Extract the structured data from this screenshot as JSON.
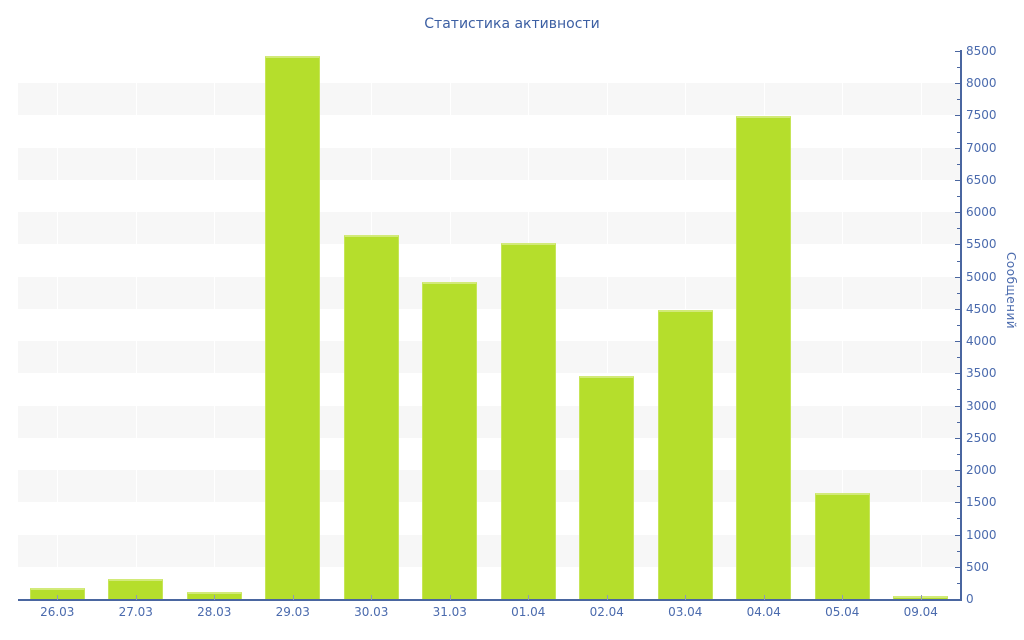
{
  "chart_data": {
    "type": "bar",
    "title": "Статистика активности",
    "ylabel": "Сообщений",
    "categories": [
      "26.03",
      "27.03",
      "28.03",
      "29.03",
      "30.03",
      "31.03",
      "01.04",
      "02.04",
      "03.04",
      "04.04",
      "05.04",
      "09.04"
    ],
    "values": [
      170,
      310,
      110,
      8430,
      5650,
      4920,
      5520,
      3460,
      4480,
      7490,
      1650,
      40
    ],
    "ylim": [
      0,
      8500
    ],
    "ytick_step": 500,
    "ytick_minor_step": 250,
    "legend": "none",
    "axis_side": "right",
    "grid": "horizontal-stripes",
    "colors": {
      "bar": "#b5de2c",
      "bar_highlight": "#d2ea79",
      "bar_edge": "#c6e558",
      "stripe": "#f7f7f7",
      "axis": "#4a66a0",
      "text": "#4a6aad",
      "title_text": "#3c5fa3"
    }
  }
}
